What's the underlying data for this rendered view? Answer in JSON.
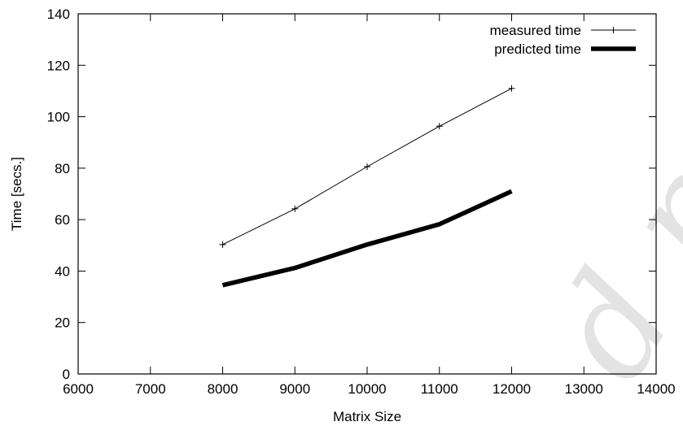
{
  "chart_data": {
    "type": "line",
    "title": "",
    "xlabel": "Matrix Size",
    "ylabel": "Time [secs.]",
    "xlim": [
      6000,
      14000
    ],
    "ylim": [
      0,
      140
    ],
    "x_ticks": [
      6000,
      7000,
      8000,
      9000,
      10000,
      11000,
      12000,
      13000,
      14000
    ],
    "y_ticks": [
      0,
      20,
      40,
      60,
      80,
      100,
      120,
      140
    ],
    "grid": false,
    "legend_position": "top-right",
    "x": [
      8000,
      9000,
      10000,
      11000,
      12000
    ],
    "series": [
      {
        "name": "measured time",
        "values": [
          50.3,
          64.2,
          80.6,
          96.3,
          111.0
        ],
        "color": "#000000",
        "marker": "plus",
        "style": "thin"
      },
      {
        "name": "predicted time",
        "values": [
          34.5,
          41.2,
          50.3,
          58.2,
          71.0
        ],
        "color": "#000000",
        "marker": "none",
        "style": "thick"
      }
    ]
  }
}
